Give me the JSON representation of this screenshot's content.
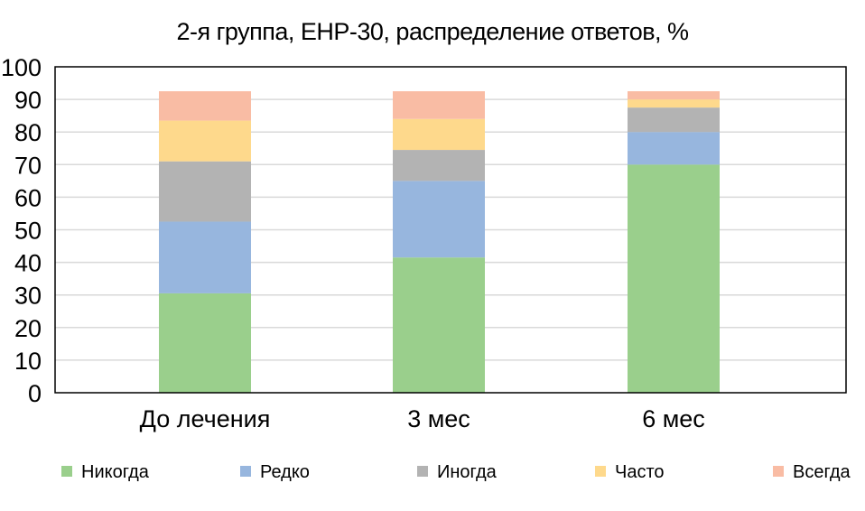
{
  "chart_data": {
    "type": "bar",
    "stacked": true,
    "title": "2-я группа, EHP-30, распределение ответов, %",
    "xlabel": "",
    "ylabel": "",
    "ylim": [
      0,
      100
    ],
    "yticks": [
      0,
      10,
      20,
      30,
      40,
      50,
      60,
      70,
      80,
      90,
      100
    ],
    "grid": true,
    "legend_position": "bottom",
    "categories": [
      "До лечения",
      "3 мес",
      "6 мес"
    ],
    "series": [
      {
        "name": "Никогда",
        "color": "#9ACF8C",
        "values": [
          30.5,
          41.5,
          70.0
        ]
      },
      {
        "name": "Редко",
        "color": "#97B6DE",
        "values": [
          22.0,
          23.5,
          10.0
        ]
      },
      {
        "name": "Иногда",
        "color": "#B3B3B3",
        "values": [
          18.5,
          9.5,
          7.5
        ]
      },
      {
        "name": "Часто",
        "color": "#FED98C",
        "values": [
          12.5,
          9.5,
          2.5
        ]
      },
      {
        "name": "Всегда",
        "color": "#F9BCA4",
        "values": [
          9.0,
          8.5,
          2.5
        ]
      }
    ]
  }
}
